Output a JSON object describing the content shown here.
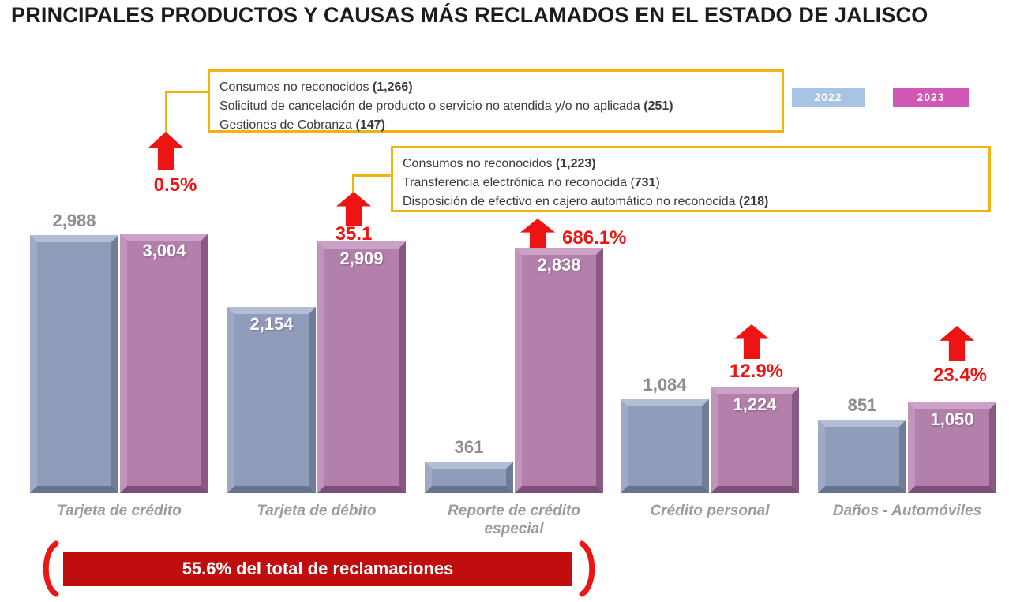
{
  "title": "PRINCIPALES PRODUCTOS Y CAUSAS MÁS RECLAMADOS EN EL ESTADO DE JALISCO",
  "legend": {
    "position": "top-right",
    "items": [
      {
        "label": "2022",
        "color": "#a7c4e4"
      },
      {
        "label": "2023",
        "color": "#d158b6"
      }
    ]
  },
  "callouts": [
    {
      "applies_to": "Tarjeta de crédito",
      "lines": [
        [
          {
            "t": "Consumos no reconocidos "
          },
          {
            "t": "(1,266)",
            "b": true
          }
        ],
        [
          {
            "t": "Solicitud de cancelación de producto o servicio no atendida y/o no aplicada "
          },
          {
            "t": "(251)",
            "b": true
          }
        ],
        [
          {
            "t": "Gestiones de Cobranza "
          },
          {
            "t": "(147)",
            "b": true
          }
        ]
      ]
    },
    {
      "applies_to": "Tarjeta de débito",
      "lines": [
        [
          {
            "t": "Consumos no reconocidos "
          },
          {
            "t": "(1,223)",
            "b": true
          }
        ],
        [
          {
            "t": "Transferencia electrónica no reconocida ("
          },
          {
            "t": "731",
            "b": true
          },
          {
            "t": ")"
          }
        ],
        [
          {
            "t": "Disposición de efectivo en cajero automático no reconocida "
          },
          {
            "t": "(218)",
            "b": true
          }
        ]
      ]
    }
  ],
  "chart_data": {
    "type": "bar",
    "title": "PRINCIPALES PRODUCTOS Y CAUSAS MÁS RECLAMADOS EN EL ESTADO DE JALISCO",
    "categories": [
      "Tarjeta de crédito",
      "Tarjeta de débito",
      "Reporte de crédito especial",
      "Crédito personal",
      "Daños - Automóviles"
    ],
    "series": [
      {
        "name": "2022",
        "color": "#8f9cba",
        "values": [
          2988,
          2154,
          361,
          1084,
          851
        ],
        "labels": [
          "2,988",
          "2,154",
          "361",
          "1,084",
          "851"
        ],
        "label_pos": [
          "above",
          "inside",
          "above",
          "above",
          "above"
        ]
      },
      {
        "name": "2023",
        "color": "#b37fab",
        "values": [
          3004,
          2909,
          2838,
          1224,
          1050
        ],
        "labels": [
          "3,004",
          "2,909",
          "2,838",
          "1,224",
          "1,050"
        ],
        "label_pos": [
          "inside",
          "inside",
          "inside",
          "inside",
          "inside"
        ]
      }
    ],
    "pct_changes": [
      "0.5%",
      "35.1",
      "686.1%",
      "12.9%",
      "23.4%"
    ],
    "grid": false,
    "value_axis_visible": false,
    "legend_position": "top-right",
    "accent_colors": {
      "arrow_red": "#ed1414",
      "callout_border": "#f1b30f",
      "banner_red": "#c00d0d"
    }
  },
  "footer": {
    "banner": "55.6% del total de reclamaciones"
  }
}
